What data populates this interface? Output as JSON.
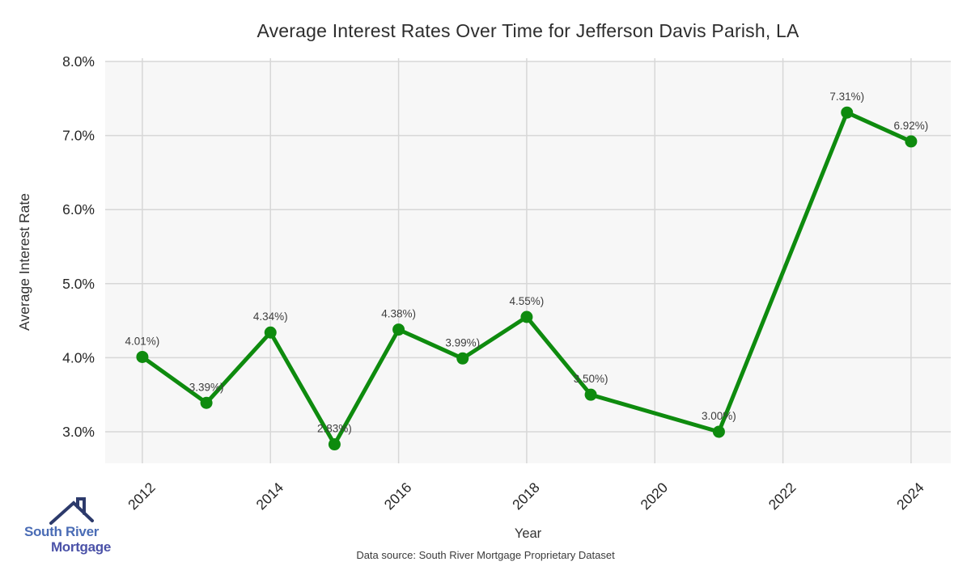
{
  "title": "Average Interest Rates Over Time for Jefferson Davis Parish, LA",
  "footer": {
    "text": "Data source: South River Mortgage Proprietary Dataset"
  },
  "logo": {
    "line1": "South River",
    "line2": "Mortgage"
  },
  "chart_data": {
    "type": "line",
    "title": "Average Interest Rates Over Time for Jefferson Davis Parish, LA",
    "xlabel": "Year",
    "ylabel": "Average Interest Rate",
    "series": [
      {
        "name": "Average Interest Rate",
        "x": [
          2012,
          2013,
          2014,
          2015,
          2016,
          2017,
          2018,
          2019,
          2021,
          2023,
          2024
        ],
        "y": [
          4.01,
          3.39,
          4.34,
          2.83,
          4.38,
          3.99,
          4.55,
          3.5,
          3.0,
          7.31,
          6.92
        ],
        "point_labels": [
          "4.01%)",
          "3.39%)",
          "4.34%)",
          "2.83%)",
          "4.38%)",
          "3.99%)",
          "4.55%)",
          "3.50%)",
          "3.00%)",
          "7.31%)",
          "6.92%)"
        ]
      }
    ],
    "x_ticks": [
      2012,
      2014,
      2016,
      2018,
      2020,
      2022,
      2024
    ],
    "y_ticks": [
      8.0,
      7.0,
      6.0,
      5.0,
      4.0,
      3.0
    ],
    "y_tick_labels": [
      "8.0%",
      "7.0%",
      "6.0%",
      "5.0%",
      "4.0%",
      "3.0%"
    ],
    "xlim": [
      2011.42,
      2024.62
    ],
    "ylim": [
      2.574,
      8.0
    ],
    "grid": true,
    "legend": false,
    "colors": {
      "line": "#0e8b0e",
      "marker": "#0e8b0e",
      "plot_bg": "#f7f7f7",
      "grid": "#d7d7d7",
      "point_label": "#3d3d3d",
      "tick_label": "#262626"
    }
  }
}
